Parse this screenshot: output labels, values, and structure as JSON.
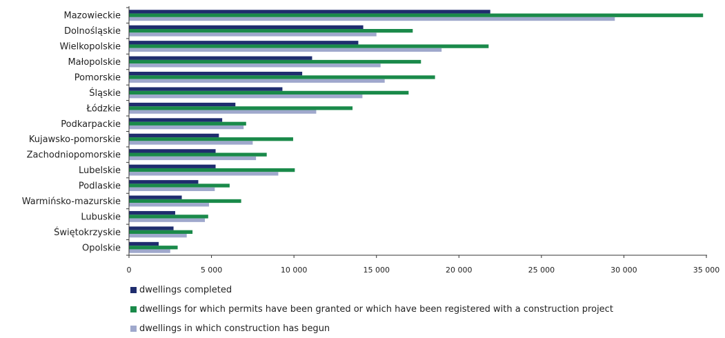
{
  "chart_data": {
    "type": "bar",
    "orientation": "horizontal",
    "categories": [
      "Mazowieckie",
      "Dolnośląskie",
      "Wielkopolskie",
      "Małopolskie",
      "Pomorskie",
      "Śląskie",
      "Łódzkie",
      "Podkarpackie",
      "Kujawsko-pomorskie",
      "Zachodniopomorskie",
      "Lubelskie",
      "Podlaskie",
      "Warmińsko-mazurskie",
      "Lubuskie",
      "Świętokrzyskie",
      "Opolskie"
    ],
    "series": [
      {
        "name": "dwellings completed",
        "color": "#1f2d6e",
        "values": [
          21900,
          14200,
          13900,
          11100,
          10500,
          9300,
          6450,
          5650,
          5450,
          5250,
          5250,
          4200,
          3200,
          2800,
          2700,
          1800
        ]
      },
      {
        "name": "dwellings for which permits have been granted or which have been registered with a construction project",
        "color": "#1a8a4a",
        "values": [
          34800,
          17200,
          21800,
          17700,
          18550,
          16950,
          13550,
          7100,
          9950,
          8350,
          10050,
          6100,
          6800,
          4800,
          3850,
          2950
        ]
      },
      {
        "name": "dwellings in which construction has begun",
        "color": "#9fa8cc",
        "values": [
          29450,
          15000,
          18950,
          15250,
          15500,
          14150,
          11350,
          6950,
          7500,
          7700,
          9050,
          5200,
          4850,
          4600,
          3500,
          2500
        ]
      }
    ],
    "xlim": [
      0,
      35000
    ],
    "xticks": [
      0,
      5000,
      10000,
      15000,
      20000,
      25000,
      30000,
      35000
    ],
    "xtick_labels": [
      "0",
      "5 000",
      "10 000",
      "15 000",
      "20 000",
      "25 000",
      "30 000",
      "35 000"
    ],
    "grid": false,
    "legend_position": "bottom"
  },
  "legend": [
    {
      "label": "dwellings completed",
      "color": "#1f2d6e"
    },
    {
      "label": "dwellings for which permits have been granted or which have been registered with a construction project",
      "color": "#1a8a4a"
    },
    {
      "label": "dwellings in which construction has begun",
      "color": "#9fa8cc"
    }
  ]
}
